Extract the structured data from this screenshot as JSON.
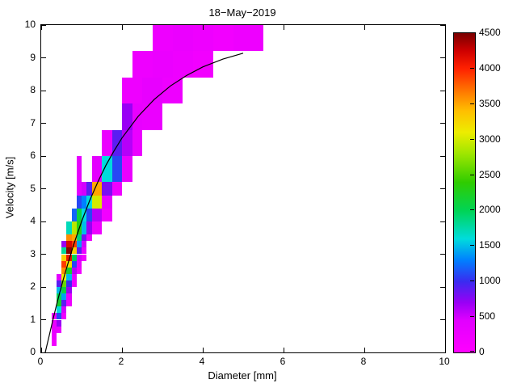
{
  "figure": {
    "background": "#ffffff",
    "axis_color": "#000000"
  },
  "chart_data": {
    "type": "heatmap",
    "title": "18−May−2019",
    "xlabel": "Diameter [mm]",
    "ylabel": "Velocity [m/s]",
    "xlim": [
      0,
      10
    ],
    "ylim": [
      0,
      10
    ],
    "xticks": [
      0,
      2,
      4,
      6,
      8,
      10
    ],
    "yticks": [
      0,
      1,
      2,
      3,
      4,
      5,
      6,
      7,
      8,
      9,
      10
    ],
    "grid": false,
    "colorbar": {
      "min": 0,
      "max": 4500,
      "ticks": [
        0,
        500,
        1000,
        1500,
        2000,
        2500,
        3000,
        3500,
        4000,
        4500
      ],
      "position": "right"
    },
    "colormap_stops": [
      [
        0,
        "#ff00ff"
      ],
      [
        450,
        "#e100ff"
      ],
      [
        700,
        "#9900f5"
      ],
      [
        1000,
        "#3a2bf0"
      ],
      [
        1300,
        "#0080ff"
      ],
      [
        1600,
        "#00dcdc"
      ],
      [
        2000,
        "#00d455"
      ],
      [
        2400,
        "#30cc00"
      ],
      [
        2800,
        "#9ee600"
      ],
      [
        3100,
        "#eded00"
      ],
      [
        3400,
        "#ffbf00"
      ],
      [
        3700,
        "#ff7300"
      ],
      [
        4000,
        "#ff2100"
      ],
      [
        4250,
        "#cf0000"
      ],
      [
        4500,
        "#780000"
      ]
    ],
    "cells_format": [
      "d_min_mm",
      "d_max_mm",
      "v_min_ms",
      "v_max_ms",
      "count"
    ],
    "cells": [
      [
        0.25,
        0.375,
        0.2,
        0.4,
        200
      ],
      [
        0.25,
        0.375,
        0.4,
        0.6,
        300
      ],
      [
        0.25,
        0.375,
        0.6,
        0.8,
        350
      ],
      [
        0.25,
        0.375,
        0.8,
        1.0,
        300
      ],
      [
        0.25,
        0.375,
        1.0,
        1.2,
        250
      ],
      [
        0.375,
        0.5,
        0.6,
        0.8,
        300
      ],
      [
        0.375,
        0.5,
        0.8,
        1.0,
        700
      ],
      [
        0.375,
        0.5,
        1.0,
        1.2,
        1100
      ],
      [
        0.375,
        0.5,
        1.2,
        1.4,
        1600
      ],
      [
        0.375,
        0.5,
        1.4,
        1.6,
        2200
      ],
      [
        0.375,
        0.5,
        1.6,
        1.8,
        2000
      ],
      [
        0.375,
        0.5,
        1.8,
        2.0,
        1500
      ],
      [
        0.375,
        0.5,
        2.0,
        2.2,
        900
      ],
      [
        0.375,
        0.5,
        2.2,
        2.4,
        400
      ],
      [
        0.5,
        0.625,
        1.0,
        1.2,
        250
      ],
      [
        0.5,
        0.625,
        1.2,
        1.4,
        500
      ],
      [
        0.5,
        0.625,
        1.4,
        1.6,
        900
      ],
      [
        0.5,
        0.625,
        1.6,
        1.8,
        1400
      ],
      [
        0.5,
        0.625,
        1.8,
        2.0,
        2100
      ],
      [
        0.5,
        0.625,
        2.0,
        2.2,
        2600
      ],
      [
        0.5,
        0.625,
        2.2,
        2.4,
        3100
      ],
      [
        0.5,
        0.625,
        2.4,
        2.6,
        3600
      ],
      [
        0.5,
        0.625,
        2.6,
        2.8,
        3900
      ],
      [
        0.5,
        0.625,
        2.8,
        3.0,
        3300
      ],
      [
        0.5,
        0.625,
        3.0,
        3.2,
        1800
      ],
      [
        0.5,
        0.625,
        3.2,
        3.4,
        700
      ],
      [
        0.625,
        0.75,
        1.4,
        1.6,
        250
      ],
      [
        0.625,
        0.75,
        1.6,
        1.8,
        400
      ],
      [
        0.625,
        0.75,
        1.8,
        2.0,
        700
      ],
      [
        0.625,
        0.75,
        2.0,
        2.2,
        1000
      ],
      [
        0.625,
        0.75,
        2.2,
        2.4,
        1500
      ],
      [
        0.625,
        0.75,
        2.4,
        2.6,
        2200
      ],
      [
        0.625,
        0.75,
        2.6,
        2.8,
        3200
      ],
      [
        0.625,
        0.75,
        2.8,
        3.0,
        4100
      ],
      [
        0.625,
        0.75,
        3.0,
        3.2,
        4450
      ],
      [
        0.625,
        0.75,
        3.2,
        3.4,
        4200
      ],
      [
        0.625,
        0.75,
        3.4,
        3.6,
        3600
      ],
      [
        0.625,
        0.75,
        3.6,
        4.0,
        1700
      ],
      [
        0.75,
        0.875,
        2.0,
        2.2,
        250
      ],
      [
        0.75,
        0.875,
        2.2,
        2.4,
        350
      ],
      [
        0.75,
        0.875,
        2.4,
        2.6,
        600
      ],
      [
        0.75,
        0.875,
        2.6,
        2.8,
        1100
      ],
      [
        0.75,
        0.875,
        2.8,
        3.0,
        2000
      ],
      [
        0.75,
        0.875,
        3.0,
        3.2,
        3300
      ],
      [
        0.75,
        0.875,
        3.2,
        3.4,
        3900
      ],
      [
        0.75,
        0.875,
        3.4,
        3.6,
        3500
      ],
      [
        0.75,
        0.875,
        3.6,
        4.0,
        2900
      ],
      [
        0.75,
        0.875,
        4.0,
        4.4,
        1200
      ],
      [
        0.875,
        1.0,
        2.4,
        2.6,
        200
      ],
      [
        0.875,
        1.0,
        2.6,
        2.8,
        300
      ],
      [
        0.875,
        1.0,
        2.8,
        3.0,
        500
      ],
      [
        0.875,
        1.0,
        3.0,
        3.2,
        900
      ],
      [
        0.875,
        1.0,
        3.2,
        3.4,
        1400
      ],
      [
        0.875,
        1.0,
        3.4,
        3.6,
        1900
      ],
      [
        0.875,
        1.0,
        3.6,
        4.0,
        2300
      ],
      [
        0.875,
        1.0,
        4.0,
        4.4,
        2100
      ],
      [
        0.875,
        1.0,
        4.4,
        4.8,
        1100
      ],
      [
        0.875,
        1.0,
        4.8,
        5.2,
        400
      ],
      [
        0.875,
        1.0,
        5.2,
        6.0,
        350
      ],
      [
        1.0,
        1.125,
        2.8,
        3.0,
        200
      ],
      [
        1.0,
        1.125,
        3.0,
        3.2,
        300
      ],
      [
        1.0,
        1.125,
        3.2,
        3.4,
        500
      ],
      [
        1.0,
        1.125,
        3.4,
        3.6,
        800
      ],
      [
        1.0,
        1.125,
        3.6,
        4.0,
        1500
      ],
      [
        1.0,
        1.125,
        4.0,
        4.4,
        1600
      ],
      [
        1.0,
        1.125,
        4.4,
        4.8,
        1300
      ],
      [
        1.0,
        1.125,
        4.8,
        5.2,
        500
      ],
      [
        1.125,
        1.25,
        3.4,
        3.6,
        250
      ],
      [
        1.125,
        1.25,
        3.6,
        4.0,
        700
      ],
      [
        1.125,
        1.25,
        4.0,
        4.4,
        1100
      ],
      [
        1.125,
        1.25,
        4.4,
        4.8,
        1600
      ],
      [
        1.125,
        1.25,
        4.8,
        5.2,
        900
      ],
      [
        1.25,
        1.5,
        3.6,
        4.0,
        250
      ],
      [
        1.25,
        1.5,
        4.0,
        4.4,
        600
      ],
      [
        1.25,
        1.5,
        4.4,
        4.8,
        3000
      ],
      [
        1.25,
        1.5,
        4.8,
        5.2,
        3500
      ],
      [
        1.25,
        1.5,
        5.2,
        6.0,
        400
      ],
      [
        1.5,
        1.75,
        4.0,
        4.4,
        200
      ],
      [
        1.5,
        1.75,
        4.4,
        4.8,
        350
      ],
      [
        1.5,
        1.75,
        4.8,
        5.2,
        800
      ],
      [
        1.5,
        1.75,
        5.2,
        6.0,
        1600
      ],
      [
        1.5,
        1.75,
        6.0,
        6.8,
        300
      ],
      [
        1.75,
        2.0,
        4.8,
        5.2,
        250
      ],
      [
        1.75,
        2.0,
        5.2,
        6.0,
        1100
      ],
      [
        1.75,
        2.0,
        6.0,
        6.8,
        900
      ],
      [
        2.0,
        2.25,
        5.2,
        6.0,
        300
      ],
      [
        2.0,
        2.25,
        6.0,
        6.8,
        600
      ],
      [
        2.0,
        2.25,
        6.8,
        7.6,
        700
      ],
      [
        2.25,
        2.5,
        6.0,
        6.8,
        300
      ],
      [
        2.25,
        2.5,
        6.8,
        7.6,
        350
      ],
      [
        2.0,
        2.5,
        7.6,
        8.4,
        250
      ],
      [
        2.5,
        3.0,
        6.8,
        7.6,
        300
      ],
      [
        2.5,
        3.0,
        7.6,
        8.4,
        350
      ],
      [
        3.0,
        3.5,
        7.6,
        8.4,
        250
      ],
      [
        2.25,
        2.75,
        8.4,
        9.2,
        250
      ],
      [
        2.75,
        3.25,
        8.4,
        9.2,
        300
      ],
      [
        3.25,
        3.75,
        8.4,
        9.2,
        250
      ],
      [
        3.75,
        4.25,
        8.4,
        9.2,
        200
      ],
      [
        2.75,
        3.25,
        9.2,
        10.0,
        250
      ],
      [
        3.25,
        3.75,
        9.2,
        10.0,
        300
      ],
      [
        3.75,
        4.25,
        9.2,
        10.0,
        250
      ],
      [
        4.25,
        4.75,
        9.2,
        10.0,
        200
      ],
      [
        4.75,
        5.5,
        9.2,
        10.0,
        250
      ]
    ],
    "curve": {
      "name": "terminal-velocity-curve",
      "color": "#000000",
      "points": [
        [
          0.1,
          0.0
        ],
        [
          0.2,
          0.52
        ],
        [
          0.3,
          1.05
        ],
        [
          0.4,
          1.55
        ],
        [
          0.5,
          2.02
        ],
        [
          0.6,
          2.46
        ],
        [
          0.8,
          3.28
        ],
        [
          1.0,
          4.0
        ],
        [
          1.2,
          4.64
        ],
        [
          1.4,
          5.2
        ],
        [
          1.6,
          5.71
        ],
        [
          1.8,
          6.15
        ],
        [
          2.0,
          6.55
        ],
        [
          2.4,
          7.21
        ],
        [
          2.8,
          7.73
        ],
        [
          3.2,
          8.14
        ],
        [
          3.6,
          8.46
        ],
        [
          4.0,
          8.72
        ],
        [
          4.5,
          8.96
        ],
        [
          5.0,
          9.14
        ]
      ]
    }
  }
}
